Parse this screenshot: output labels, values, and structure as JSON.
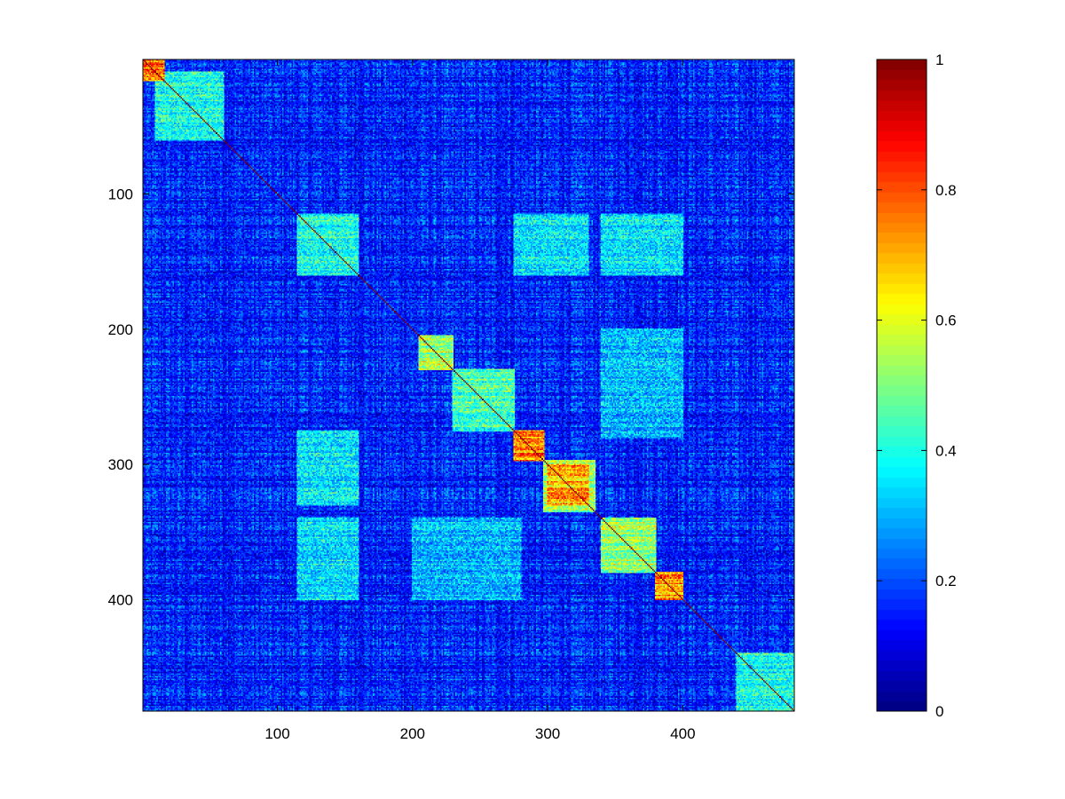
{
  "chart_data": {
    "type": "heatmap",
    "title": "",
    "xlabel": "",
    "ylabel": "",
    "matrix_size": 482,
    "xlim": [
      1,
      482
    ],
    "ylim": [
      1,
      482
    ],
    "y_axis_direction": "reversed",
    "x_ticks": [
      100,
      200,
      300,
      400
    ],
    "x_tick_labels": [
      "100",
      "200",
      "300",
      "400"
    ],
    "y_ticks": [
      100,
      200,
      300,
      400
    ],
    "y_tick_labels": [
      "100",
      "200",
      "300",
      "400"
    ],
    "colormap": "jet",
    "color_range": [
      0,
      1
    ],
    "colorbar": {
      "position": "right",
      "ticks": [
        0,
        0.2,
        0.4,
        0.6,
        0.8,
        1
      ],
      "tick_labels": [
        "0",
        "0.2",
        "0.4",
        "0.6",
        "0.8",
        "1"
      ]
    },
    "diagonal_value": 1,
    "background_level": 0.2,
    "blocks": [
      {
        "start": 1,
        "end": 16,
        "value": 0.85
      },
      {
        "start": 10,
        "end": 60,
        "value": 0.45
      },
      {
        "start": 115,
        "end": 160,
        "value": 0.45
      },
      {
        "start": 205,
        "end": 230,
        "value": 0.6
      },
      {
        "start": 230,
        "end": 275,
        "value": 0.5
      },
      {
        "start": 275,
        "end": 297,
        "value": 0.85
      },
      {
        "start": 297,
        "end": 335,
        "value": 0.6
      },
      {
        "start": 300,
        "end": 330,
        "value": 0.8
      },
      {
        "start": 340,
        "end": 380,
        "value": 0.6
      },
      {
        "start": 380,
        "end": 400,
        "value": 0.85
      },
      {
        "start": 440,
        "end": 482,
        "value": 0.45
      }
    ],
    "off_diagonal_blocks": [
      {
        "rows": [
          115,
          160
        ],
        "cols": [
          340,
          400
        ],
        "value": 0.4
      },
      {
        "rows": [
          340,
          400
        ],
        "cols": [
          115,
          160
        ],
        "value": 0.4
      },
      {
        "rows": [
          275,
          330
        ],
        "cols": [
          115,
          160
        ],
        "value": 0.4
      },
      {
        "rows": [
          115,
          160
        ],
        "cols": [
          275,
          330
        ],
        "value": 0.4
      },
      {
        "rows": [
          200,
          280
        ],
        "cols": [
          340,
          400
        ],
        "value": 0.35
      },
      {
        "rows": [
          340,
          400
        ],
        "cols": [
          200,
          280
        ],
        "value": 0.35
      }
    ]
  }
}
